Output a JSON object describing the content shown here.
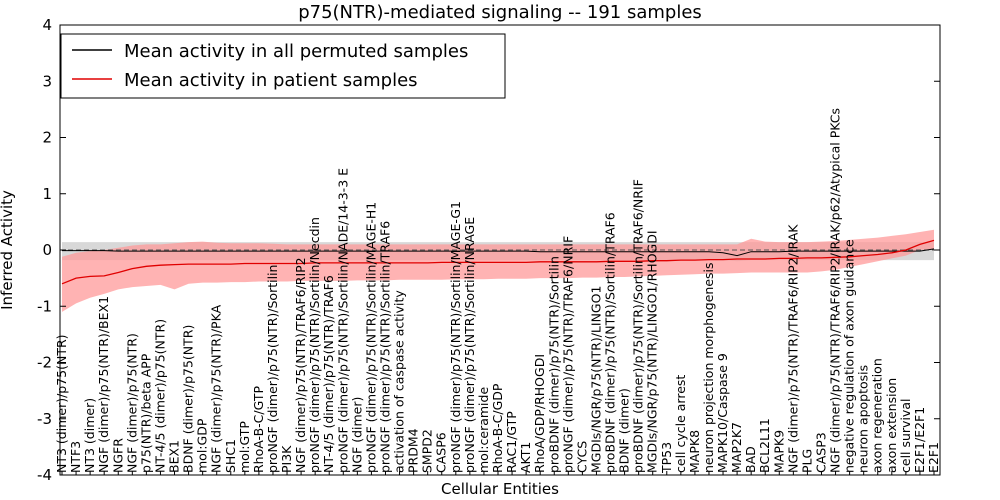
{
  "chart_data": {
    "type": "line",
    "title": "p75(NTR)-mediated signaling -- 191 samples",
    "xlabel": "Cellular Entities",
    "ylabel": "Inferred Activity",
    "ylim": [
      -4,
      4
    ],
    "yticks": [
      -4,
      -3,
      -2,
      -1,
      0,
      1,
      2,
      3,
      4
    ],
    "legend_position": "top-left",
    "colors": {
      "permuted": "#000000",
      "patient": "#e00000",
      "patient_band": "#ff9a9a",
      "permuted_band": "#c8c8c8"
    },
    "categories": [
      "NT3 (dimer)/p75(NTR)",
      "NTF3",
      "NT3 (dimer)",
      "NGF (dimer)/p75(NTR)/BEX1",
      "NGFR",
      "NGF (dimer)/p75(NTR)",
      "p75(NTR)/beta APP",
      "NT-4/5 (dimer)/p75(NTR)",
      "BEX1",
      "BDNF (dimer)/p75(NTR)",
      "mol:GDP",
      "NGF (dimer)/p75(NTR)/PKA",
      "SHC1",
      "mol:GTP",
      "RhoA-B-C/GTP",
      "proNGF (dimer)/p75(NTR)/Sortilin",
      "PI3K",
      "NGF (dimer)/p75(NTR)/TRAF6/RIP2",
      "proNGF (dimer)/p75(NTR)/Sortilin/Necdin",
      "NT-4/5 (dimer)/p75(NTR)/TRAF6",
      "proNGF (dimer)/p75(NTR)/Sortilin/NADE/14-3-3 E",
      "NGF (dimer)",
      "proNGF (dimer)/p75(NTR)/Sortilin/MAGE-H1",
      "proNGF (dimer)/p75(NTR)/Sortilin/TRAF6",
      "activation of caspase activity",
      "PRDM4",
      "SMPD2",
      "CASP6",
      "proNGF (dimer)/p75(NTR)/Sortilin/MAGE-G1",
      "proNGF (dimer)/p75(NTR)/Sortilin/NRAGE",
      "mol:ceramide",
      "RhoA-B-C/GDP",
      "RAC1/GTP",
      "AKT1",
      "RhoA/GDP/RHOGDI",
      "proBDNF (dimer)/p75(NTR)/Sortilin",
      "proNGF (dimer)/p75(NTR)/TRAF6/NRIF",
      "CYCS",
      "MGDIs/NGR/p75(NTR)/LINGO1",
      "proBDNF (dimer)/p75(NTR)/Sortilin/TRAF6",
      "BDNF (dimer)",
      "proBDNF (dimer)/p75(NTR)/Sortilin/TRAF6/NRIF",
      "MGDIs/NGR/p75(NTR)/LINGO1/RHOGDI",
      "TP53",
      "cell cycle arrest",
      "MAPK8",
      "neuron projection morphogenesis",
      "MAPK10/Caspase 9",
      "MAP2K7",
      "BAD",
      "BCL2L11",
      "MAPK9",
      "NGF (dimer)/p75(NTR)/TRAF6/RIP2/IRAK",
      "PLG",
      "CASP3",
      "NGF (dimer)/p75(NTR)/TRAF6/RIP2/IRAK/p62/Atypical PKCs",
      "negative regulation of axon guidance",
      "neuron apoptosis",
      "axon regeneration",
      "axon extension",
      "cell survival",
      "E2F1/E2F1",
      "E2F1"
    ],
    "series": [
      {
        "name": "Mean activity in all permuted samples",
        "values": [
          -0.01,
          -0.01,
          -0.01,
          -0.01,
          -0.02,
          -0.02,
          -0.02,
          -0.02,
          -0.02,
          -0.02,
          -0.02,
          -0.02,
          -0.02,
          -0.02,
          -0.02,
          -0.02,
          -0.02,
          -0.02,
          -0.02,
          -0.02,
          -0.02,
          -0.02,
          -0.02,
          -0.02,
          -0.02,
          -0.02,
          -0.02,
          -0.02,
          -0.02,
          -0.02,
          -0.02,
          -0.02,
          -0.02,
          -0.02,
          -0.03,
          -0.03,
          -0.03,
          -0.03,
          -0.03,
          -0.03,
          -0.03,
          -0.03,
          -0.03,
          -0.03,
          -0.03,
          -0.03,
          -0.03,
          -0.05,
          -0.1,
          -0.03,
          -0.03,
          -0.03,
          -0.02,
          -0.02,
          -0.02,
          -0.02,
          -0.02,
          -0.02,
          -0.02,
          -0.02,
          -0.02,
          -0.02,
          0.02
        ],
        "lower": [
          -0.18,
          -0.18,
          -0.18,
          -0.18,
          -0.18,
          -0.18,
          -0.18,
          -0.18,
          -0.18,
          -0.18,
          -0.18,
          -0.18,
          -0.18,
          -0.18,
          -0.18,
          -0.18,
          -0.18,
          -0.18,
          -0.18,
          -0.18,
          -0.18,
          -0.18,
          -0.18,
          -0.18,
          -0.18,
          -0.18,
          -0.18,
          -0.18,
          -0.18,
          -0.18,
          -0.18,
          -0.18,
          -0.18,
          -0.18,
          -0.18,
          -0.18,
          -0.18,
          -0.18,
          -0.18,
          -0.18,
          -0.18,
          -0.18,
          -0.18,
          -0.18,
          -0.18,
          -0.18,
          -0.18,
          -0.18,
          -0.2,
          -0.18,
          -0.18,
          -0.18,
          -0.18,
          -0.18,
          -0.18,
          -0.18,
          -0.18,
          -0.18,
          -0.18,
          -0.18,
          -0.18,
          -0.18,
          -0.18
        ],
        "upper": [
          0.14,
          0.14,
          0.14,
          0.14,
          0.14,
          0.14,
          0.14,
          0.14,
          0.14,
          0.14,
          0.14,
          0.14,
          0.14,
          0.14,
          0.14,
          0.14,
          0.14,
          0.14,
          0.14,
          0.14,
          0.14,
          0.14,
          0.14,
          0.14,
          0.14,
          0.14,
          0.14,
          0.14,
          0.14,
          0.14,
          0.14,
          0.14,
          0.14,
          0.14,
          0.14,
          0.14,
          0.14,
          0.14,
          0.14,
          0.14,
          0.14,
          0.14,
          0.14,
          0.14,
          0.14,
          0.14,
          0.14,
          0.14,
          0.14,
          0.14,
          0.14,
          0.14,
          0.14,
          0.14,
          0.14,
          0.14,
          0.14,
          0.14,
          0.14,
          0.14,
          0.14,
          0.14,
          0.14
        ]
      },
      {
        "name": "Mean activity in patient samples",
        "values": [
          -0.6,
          -0.5,
          -0.47,
          -0.46,
          -0.4,
          -0.33,
          -0.29,
          -0.27,
          -0.26,
          -0.25,
          -0.25,
          -0.25,
          -0.25,
          -0.24,
          -0.24,
          -0.24,
          -0.24,
          -0.24,
          -0.23,
          -0.23,
          -0.23,
          -0.23,
          -0.23,
          -0.23,
          -0.23,
          -0.23,
          -0.23,
          -0.22,
          -0.22,
          -0.22,
          -0.22,
          -0.22,
          -0.22,
          -0.22,
          -0.21,
          -0.21,
          -0.21,
          -0.21,
          -0.21,
          -0.2,
          -0.2,
          -0.2,
          -0.19,
          -0.19,
          -0.18,
          -0.18,
          -0.17,
          -0.17,
          -0.16,
          -0.16,
          -0.16,
          -0.15,
          -0.15,
          -0.14,
          -0.14,
          -0.13,
          -0.12,
          -0.1,
          -0.08,
          -0.05,
          0.0,
          0.1,
          0.17
        ],
        "lower": [
          -1.1,
          -0.95,
          -0.85,
          -0.78,
          -0.7,
          -0.66,
          -0.64,
          -0.62,
          -0.7,
          -0.6,
          -0.58,
          -0.58,
          -0.57,
          -0.57,
          -0.56,
          -0.56,
          -0.56,
          -0.55,
          -0.55,
          -0.55,
          -0.55,
          -0.54,
          -0.54,
          -0.54,
          -0.53,
          -0.53,
          -0.53,
          -0.53,
          -0.52,
          -0.52,
          -0.52,
          -0.51,
          -0.51,
          -0.51,
          -0.5,
          -0.5,
          -0.5,
          -0.49,
          -0.49,
          -0.48,
          -0.48,
          -0.47,
          -0.46,
          -0.45,
          -0.44,
          -0.43,
          -0.42,
          -0.42,
          -0.41,
          -0.4,
          -0.4,
          -0.4,
          -0.4,
          -0.4,
          -0.38,
          -0.35,
          -0.3,
          -0.25,
          -0.2,
          -0.15,
          -0.1,
          0.0,
          0.02
        ],
        "upper": [
          -0.12,
          -0.05,
          -0.02,
          0.0,
          0.04,
          0.08,
          0.1,
          0.1,
          0.12,
          0.14,
          0.15,
          0.13,
          0.12,
          0.12,
          0.12,
          0.11,
          0.1,
          0.1,
          0.1,
          0.1,
          0.1,
          0.1,
          0.1,
          0.1,
          0.1,
          0.1,
          0.1,
          0.1,
          0.1,
          0.1,
          0.1,
          0.1,
          0.1,
          0.1,
          0.1,
          0.1,
          0.1,
          0.1,
          0.1,
          0.1,
          0.1,
          0.1,
          0.1,
          0.1,
          0.1,
          0.1,
          0.1,
          0.1,
          0.1,
          0.2,
          0.15,
          0.14,
          0.14,
          0.14,
          0.15,
          0.16,
          0.18,
          0.2,
          0.22,
          0.25,
          0.28,
          0.32,
          0.36
        ]
      }
    ]
  }
}
